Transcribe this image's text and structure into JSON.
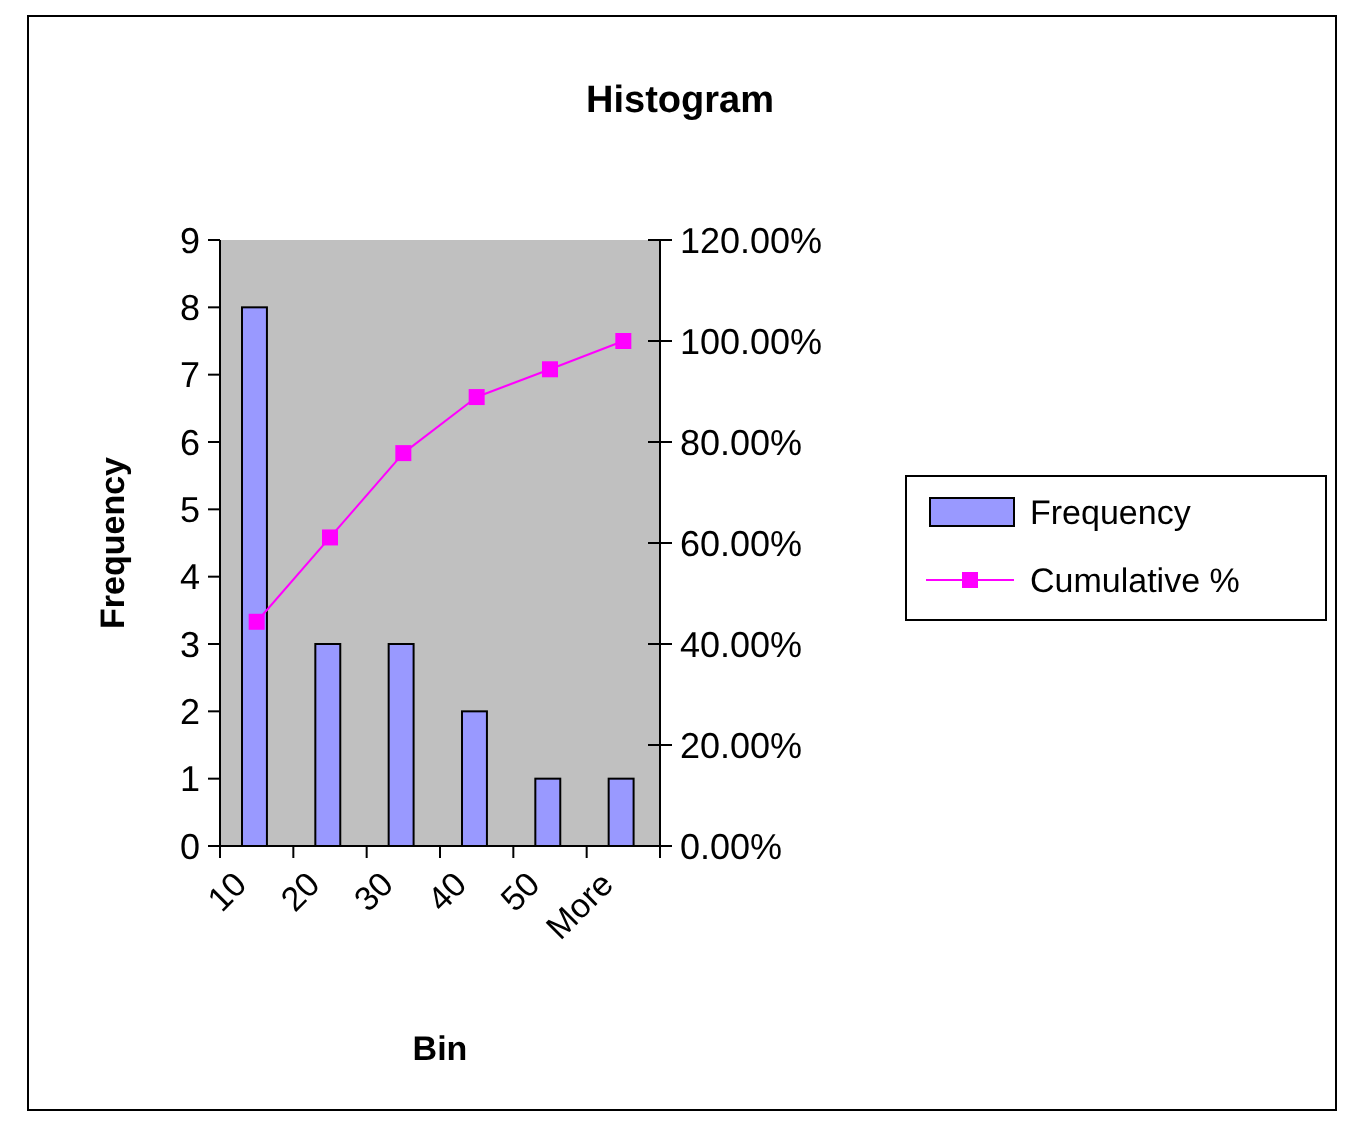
{
  "chart_data": {
    "type": "bar",
    "title": "Histogram",
    "xlabel": "Bin",
    "ylabel": "Frequency",
    "categories": [
      "10",
      "20",
      "30",
      "40",
      "50",
      "More"
    ],
    "series": [
      {
        "name": "Frequency",
        "color": "#9999ff",
        "values": [
          8,
          3,
          3,
          2,
          1,
          1
        ]
      },
      {
        "name": "Cumulative %",
        "type": "line",
        "axis": "y2",
        "color": "#ff00ff",
        "marker": "square",
        "values": [
          44.4,
          61.1,
          77.8,
          88.9,
          94.4,
          100
        ]
      }
    ],
    "ylim": [
      0,
      9
    ],
    "yticks": [
      0,
      1,
      2,
      3,
      4,
      5,
      6,
      7,
      8,
      9
    ],
    "y2lim": [
      0,
      120
    ],
    "y2ticks": [
      {
        "value": 0,
        "label": "0.00%"
      },
      {
        "value": 20,
        "label": "20.00%"
      },
      {
        "value": 40,
        "label": "40.00%"
      },
      {
        "value": 60,
        "label": "60.00%"
      },
      {
        "value": 80,
        "label": "80.00%"
      },
      {
        "value": 100,
        "label": "100.00%"
      },
      {
        "value": 120,
        "label": "120.00%"
      }
    ],
    "grid": false,
    "legend": "right"
  }
}
